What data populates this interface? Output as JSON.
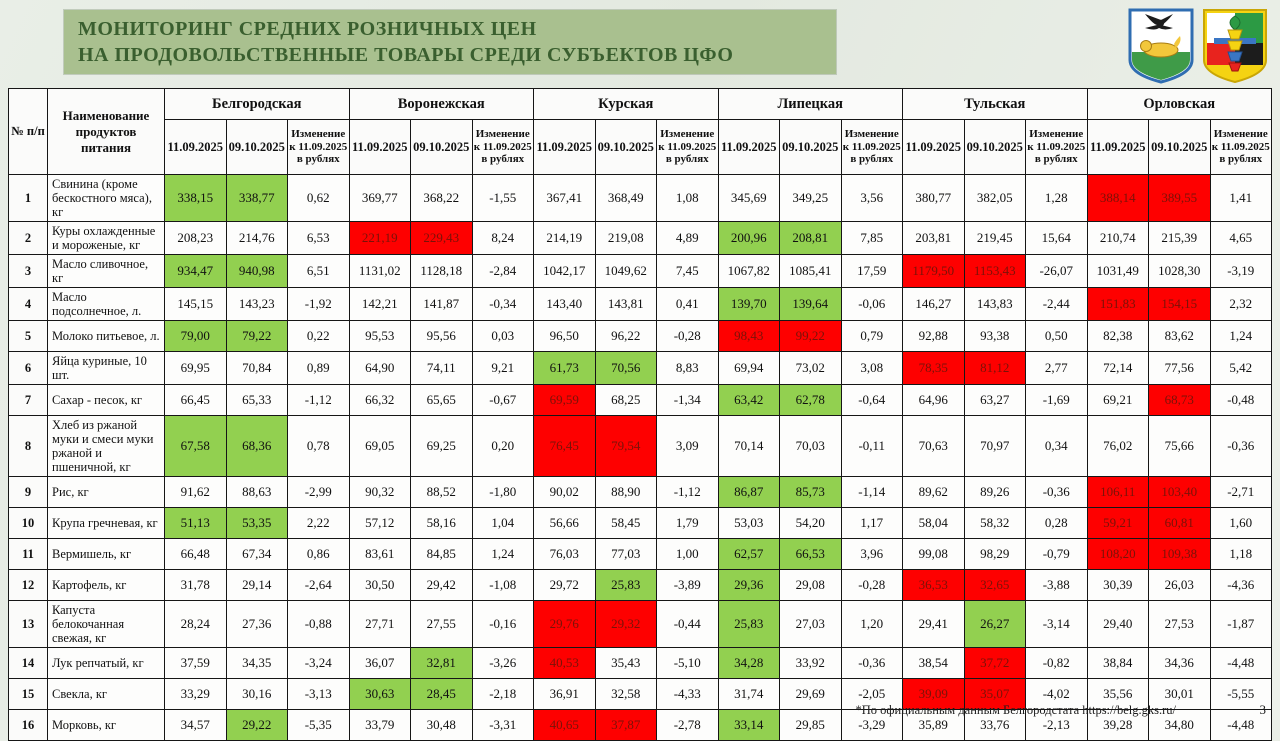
{
  "header": {
    "title_line1": "МОНИТОРИНГ СРЕДНИХ РОЗНИЧНЫХ ЦЕН",
    "title_line2": "НА ПРОДОВОЛЬСТВЕННЫЕ ТОВАРЫ СРЕДИ СУБЪЕКТОВ ЦФО",
    "emblems": [
      "belgorod-oblast-coat-of-arms",
      "belgorodsky-district-coat-of-arms"
    ]
  },
  "footer": {
    "footnote": "*По официальным данным Белгородстата https://belg.gks.ru/",
    "page_number": "3"
  },
  "colors": {
    "banner_bg": "#a9c08f",
    "banner_text": "#3a5f2f",
    "green_highlight": "#92d050",
    "red_highlight": "#fe0000",
    "red_cell_text": "#7a1208"
  },
  "table": {
    "corner_num_header": "№ п/п",
    "corner_product_header": "Наименование продуктов питания",
    "regions": [
      "Белгородская",
      "Воронежская",
      "Курская",
      "Липецкая",
      "Тульская",
      "Орловская"
    ],
    "date_columns": [
      "11.09.2025",
      "09.10.2025"
    ],
    "change_column": "Изменение к 11.09.2025 в рублях",
    "rows": [
      {
        "num": "1",
        "product": "Свинина (кроме бескостного мяса), кг",
        "values": [
          "338,15",
          "338,77",
          "0,62",
          "369,77",
          "368,22",
          "-1,55",
          "367,41",
          "368,49",
          "1,08",
          "345,69",
          "349,25",
          "3,56",
          "380,77",
          "382,05",
          "1,28",
          "388,14",
          "389,55",
          "1,41"
        ],
        "marks": [
          "g",
          "g",
          "",
          "",
          "",
          "",
          "",
          "",
          "",
          "",
          "",
          "",
          "",
          "",
          "",
          "r",
          "r",
          ""
        ]
      },
      {
        "num": "2",
        "product": "Куры охлажденные и мороженые, кг",
        "values": [
          "208,23",
          "214,76",
          "6,53",
          "221,19",
          "229,43",
          "8,24",
          "214,19",
          "219,08",
          "4,89",
          "200,96",
          "208,81",
          "7,85",
          "203,81",
          "219,45",
          "15,64",
          "210,74",
          "215,39",
          "4,65"
        ],
        "marks": [
          "",
          "",
          "",
          "r",
          "r",
          "",
          "",
          "",
          "",
          "g",
          "g",
          "",
          "",
          "",
          "",
          "",
          "",
          ""
        ]
      },
      {
        "num": "3",
        "product": "Масло сливочное, кг",
        "values": [
          "934,47",
          "940,98",
          "6,51",
          "1131,02",
          "1128,18",
          "-2,84",
          "1042,17",
          "1049,62",
          "7,45",
          "1067,82",
          "1085,41",
          "17,59",
          "1179,50",
          "1153,43",
          "-26,07",
          "1031,49",
          "1028,30",
          "-3,19"
        ],
        "marks": [
          "g",
          "g",
          "",
          "",
          "",
          "",
          "",
          "",
          "",
          "",
          "",
          "",
          "r",
          "r",
          "",
          "",
          "",
          ""
        ]
      },
      {
        "num": "4",
        "product": "Масло подсолнечное, л.",
        "values": [
          "145,15",
          "143,23",
          "-1,92",
          "142,21",
          "141,87",
          "-0,34",
          "143,40",
          "143,81",
          "0,41",
          "139,70",
          "139,64",
          "-0,06",
          "146,27",
          "143,83",
          "-2,44",
          "151,83",
          "154,15",
          "2,32"
        ],
        "marks": [
          "",
          "",
          "",
          "",
          "",
          "",
          "",
          "",
          "",
          "g",
          "g",
          "",
          "",
          "",
          "",
          "r",
          "r",
          ""
        ]
      },
      {
        "num": "5",
        "product": "Молоко питьевое, л.",
        "values": [
          "79,00",
          "79,22",
          "0,22",
          "95,53",
          "95,56",
          "0,03",
          "96,50",
          "96,22",
          "-0,28",
          "98,43",
          "99,22",
          "0,79",
          "92,88",
          "93,38",
          "0,50",
          "82,38",
          "83,62",
          "1,24"
        ],
        "marks": [
          "g",
          "g",
          "",
          "",
          "",
          "",
          "",
          "",
          "",
          "r",
          "r",
          "",
          "",
          "",
          "",
          "",
          "",
          ""
        ]
      },
      {
        "num": "6",
        "product": "Яйца куриные, 10 шт.",
        "values": [
          "69,95",
          "70,84",
          "0,89",
          "64,90",
          "74,11",
          "9,21",
          "61,73",
          "70,56",
          "8,83",
          "69,94",
          "73,02",
          "3,08",
          "78,35",
          "81,12",
          "2,77",
          "72,14",
          "77,56",
          "5,42"
        ],
        "marks": [
          "",
          "",
          "",
          "",
          "",
          "",
          "g",
          "g",
          "",
          "",
          "",
          "",
          "r",
          "r",
          "",
          "",
          "",
          ""
        ]
      },
      {
        "num": "7",
        "product": "Сахар - песок, кг",
        "values": [
          "66,45",
          "65,33",
          "-1,12",
          "66,32",
          "65,65",
          "-0,67",
          "69,59",
          "68,25",
          "-1,34",
          "63,42",
          "62,78",
          "-0,64",
          "64,96",
          "63,27",
          "-1,69",
          "69,21",
          "68,73",
          "-0,48"
        ],
        "marks": [
          "",
          "",
          "",
          "",
          "",
          "",
          "r",
          "",
          "",
          "g",
          "g",
          "",
          "",
          "",
          "",
          "",
          "r",
          ""
        ]
      },
      {
        "num": "8",
        "product": "Хлеб из ржаной муки и смеси муки ржаной и пшеничной, кг",
        "values": [
          "67,58",
          "68,36",
          "0,78",
          "69,05",
          "69,25",
          "0,20",
          "76,45",
          "79,54",
          "3,09",
          "70,14",
          "70,03",
          "-0,11",
          "70,63",
          "70,97",
          "0,34",
          "76,02",
          "75,66",
          "-0,36"
        ],
        "marks": [
          "g",
          "g",
          "",
          "",
          "",
          "",
          "r",
          "r",
          "",
          "",
          "",
          "",
          "",
          "",
          "",
          "",
          "",
          ""
        ]
      },
      {
        "num": "9",
        "product": "Рис, кг",
        "values": [
          "91,62",
          "88,63",
          "-2,99",
          "90,32",
          "88,52",
          "-1,80",
          "90,02",
          "88,90",
          "-1,12",
          "86,87",
          "85,73",
          "-1,14",
          "89,62",
          "89,26",
          "-0,36",
          "106,11",
          "103,40",
          "-2,71"
        ],
        "marks": [
          "",
          "",
          "",
          "",
          "",
          "",
          "",
          "",
          "",
          "g",
          "g",
          "",
          "",
          "",
          "",
          "r",
          "r",
          ""
        ]
      },
      {
        "num": "10",
        "product": "Крупа гречневая, кг",
        "values": [
          "51,13",
          "53,35",
          "2,22",
          "57,12",
          "58,16",
          "1,04",
          "56,66",
          "58,45",
          "1,79",
          "53,03",
          "54,20",
          "1,17",
          "58,04",
          "58,32",
          "0,28",
          "59,21",
          "60,81",
          "1,60"
        ],
        "marks": [
          "g",
          "g",
          "",
          "",
          "",
          "",
          "",
          "",
          "",
          "",
          "",
          "",
          "",
          "",
          "",
          "r",
          "r",
          ""
        ]
      },
      {
        "num": "11",
        "product": "Вермишель, кг",
        "values": [
          "66,48",
          "67,34",
          "0,86",
          "83,61",
          "84,85",
          "1,24",
          "76,03",
          "77,03",
          "1,00",
          "62,57",
          "66,53",
          "3,96",
          "99,08",
          "98,29",
          "-0,79",
          "108,20",
          "109,38",
          "1,18"
        ],
        "marks": [
          "",
          "",
          "",
          "",
          "",
          "",
          "",
          "",
          "",
          "g",
          "g",
          "",
          "",
          "",
          "",
          "r",
          "r",
          ""
        ]
      },
      {
        "num": "12",
        "product": "Картофель, кг",
        "values": [
          "31,78",
          "29,14",
          "-2,64",
          "30,50",
          "29,42",
          "-1,08",
          "29,72",
          "25,83",
          "-3,89",
          "29,36",
          "29,08",
          "-0,28",
          "36,53",
          "32,65",
          "-3,88",
          "30,39",
          "26,03",
          "-4,36"
        ],
        "marks": [
          "",
          "",
          "",
          "",
          "",
          "",
          "",
          "g",
          "",
          "g",
          "",
          "",
          "r",
          "r",
          "",
          "",
          "",
          ""
        ]
      },
      {
        "num": "13",
        "product": "Капуста белокочанная свежая, кг",
        "values": [
          "28,24",
          "27,36",
          "-0,88",
          "27,71",
          "27,55",
          "-0,16",
          "29,76",
          "29,32",
          "-0,44",
          "25,83",
          "27,03",
          "1,20",
          "29,41",
          "26,27",
          "-3,14",
          "29,40",
          "27,53",
          "-1,87"
        ],
        "marks": [
          "",
          "",
          "",
          "",
          "",
          "",
          "r",
          "r",
          "",
          "g",
          "",
          "",
          "",
          "g",
          "",
          "",
          "",
          ""
        ]
      },
      {
        "num": "14",
        "product": "Лук репчатый, кг",
        "values": [
          "37,59",
          "34,35",
          "-3,24",
          "36,07",
          "32,81",
          "-3,26",
          "40,53",
          "35,43",
          "-5,10",
          "34,28",
          "33,92",
          "-0,36",
          "38,54",
          "37,72",
          "-0,82",
          "38,84",
          "34,36",
          "-4,48"
        ],
        "marks": [
          "",
          "",
          "",
          "",
          "g",
          "",
          "r",
          "",
          "",
          "g",
          "",
          "",
          "",
          "r",
          "",
          "",
          "",
          ""
        ]
      },
      {
        "num": "15",
        "product": "Свекла, кг",
        "values": [
          "33,29",
          "30,16",
          "-3,13",
          "30,63",
          "28,45",
          "-2,18",
          "36,91",
          "32,58",
          "-4,33",
          "31,74",
          "29,69",
          "-2,05",
          "39,09",
          "35,07",
          "-4,02",
          "35,56",
          "30,01",
          "-5,55"
        ],
        "marks": [
          "",
          "",
          "",
          "g",
          "g",
          "",
          "",
          "",
          "",
          "",
          "",
          "",
          "r",
          "r",
          "",
          "",
          "",
          ""
        ]
      },
      {
        "num": "16",
        "product": "Морковь, кг",
        "values": [
          "34,57",
          "29,22",
          "-5,35",
          "33,79",
          "30,48",
          "-3,31",
          "40,65",
          "37,87",
          "-2,78",
          "33,14",
          "29,85",
          "-3,29",
          "35,89",
          "33,76",
          "-2,13",
          "39,28",
          "34,80",
          "-4,48"
        ],
        "marks": [
          "",
          "g",
          "",
          "",
          "",
          "",
          "r",
          "r",
          "",
          "g",
          "",
          "",
          "",
          "",
          "",
          "",
          "",
          ""
        ]
      }
    ]
  }
}
